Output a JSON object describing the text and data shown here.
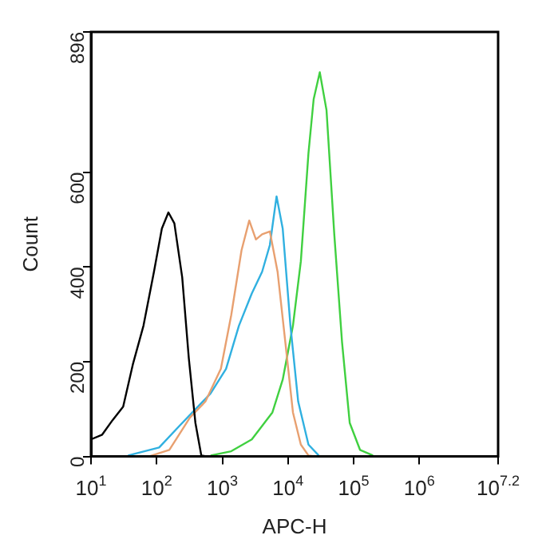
{
  "chart_data": {
    "type": "line",
    "xlabel": "APC-H",
    "ylabel": "Count",
    "log": "x",
    "grid": false,
    "marker": "none",
    "line_style": "solid",
    "xlim": [
      10,
      15848932
    ],
    "xticks": [
      {
        "value": 10,
        "label": "10$^{1}$"
      },
      {
        "value": 100,
        "label": "10$^{2}$"
      },
      {
        "value": 1000,
        "label": "10$^{3}$"
      },
      {
        "value": 10000,
        "label": "10$^{4}$"
      },
      {
        "value": 100000,
        "label": "10$^{5}$"
      },
      {
        "value": 1000000,
        "label": "10$^{6}$"
      },
      {
        "value": 15848932,
        "label": "10$^{7.2}$"
      }
    ],
    "ylim": [
      0,
      896
    ],
    "yticks": [
      0,
      200,
      400,
      600,
      896
    ],
    "series": [
      {
        "color": "#000000",
        "x": [
          10,
          14.8,
          21.4,
          30.9,
          43.7,
          63,
          91,
          120,
          151,
          186,
          245,
          309,
          389,
          479,
          600,
          15848932
        ],
        "values": [
          36,
          46,
          77,
          105,
          196,
          276,
          390,
          481,
          515,
          492,
          378,
          207,
          71,
          2,
          0,
          0
        ]
      },
      {
        "color": "#e8a070",
        "x": [
          75.7,
          156,
          224,
          321,
          553,
          951,
          1366,
          1960,
          2570,
          3250,
          4040,
          5290,
          6940,
          9100,
          11900,
          15700,
          20500,
          26900
        ],
        "values": [
          0,
          14,
          48,
          82,
          116,
          185,
          298,
          435,
          498,
          458,
          469,
          475,
          390,
          242,
          93,
          25,
          2,
          0
        ]
      },
      {
        "color": "#30b0e0",
        "x": [
          36.7,
          109,
          224,
          385,
          663,
          1140,
          1790,
          2810,
          4040,
          5290,
          6700,
          8310,
          10900,
          14300,
          20500,
          29400
        ],
        "values": [
          2,
          19,
          65,
          99,
          133,
          185,
          276,
          344,
          390,
          446,
          549,
          481,
          276,
          116,
          25,
          2
        ]
      },
      {
        "color": "#40d040",
        "x": [
          663,
          1366,
          2810,
          5790,
          8310,
          11900,
          15700,
          20500,
          24600,
          30500,
          38600,
          50700,
          66500,
          87100,
          125000,
          197000
        ],
        "values": [
          2,
          11,
          36,
          93,
          162,
          276,
          412,
          640,
          754,
          811,
          731,
          469,
          242,
          71,
          14,
          2
        ]
      }
    ]
  }
}
